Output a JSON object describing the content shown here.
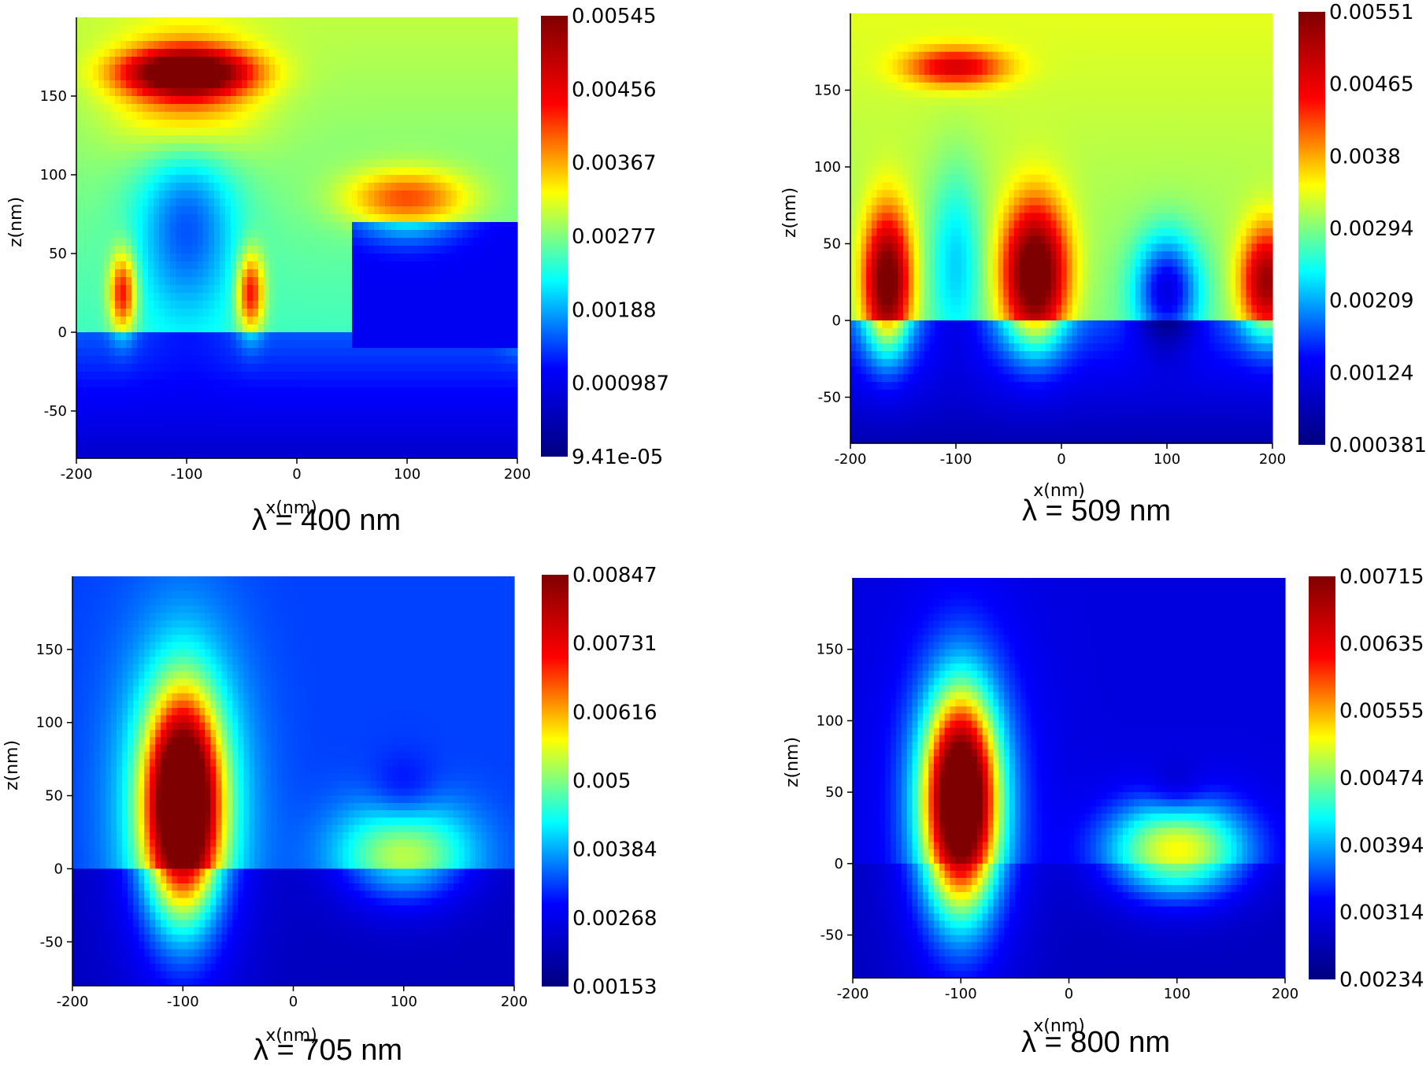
{
  "colormap": {
    "name": "jet",
    "stops": [
      "#00007f",
      "#0000ff",
      "#00ffff",
      "#ffff00",
      "#ff0000",
      "#7f0000"
    ]
  },
  "chart_data": [
    {
      "type": "heatmap",
      "caption": "λ = 400 nm",
      "xlabel": "x(nm)",
      "ylabel": "z(nm)",
      "xlim": [
        -200,
        200
      ],
      "ylim": [
        -80,
        200
      ],
      "x_ticks": [
        "-200",
        "-100",
        "0",
        "100",
        "200"
      ],
      "y_ticks": [
        "-50",
        "0",
        "50",
        "100",
        "150"
      ],
      "colorbar": {
        "min": 9.41e-05,
        "max": 0.00545,
        "tick_labels": [
          "0.00545",
          "0.00456",
          "0.00367",
          "0.00277",
          "0.00188",
          "0.000987",
          "9.41e-05"
        ]
      }
    },
    {
      "type": "heatmap",
      "caption": "λ = 509 nm",
      "xlabel": "x(nm)",
      "ylabel": "z(nm)",
      "xlim": [
        -200,
        200
      ],
      "ylim": [
        -80,
        200
      ],
      "x_ticks": [
        "-200",
        "-100",
        "0",
        "100",
        "200"
      ],
      "y_ticks": [
        "-50",
        "0",
        "50",
        "100",
        "150"
      ],
      "colorbar": {
        "min": 0.000381,
        "max": 0.00551,
        "tick_labels": [
          "0.00551",
          "0.00465",
          "0.0038",
          "0.00294",
          "0.00209",
          "0.00124",
          "0.000381"
        ]
      }
    },
    {
      "type": "heatmap",
      "caption": "λ = 705 nm",
      "xlabel": "x(nm)",
      "ylabel": "z(nm)",
      "xlim": [
        -200,
        200
      ],
      "ylim": [
        -80,
        200
      ],
      "x_ticks": [
        "-200",
        "-100",
        "0",
        "100",
        "200"
      ],
      "y_ticks": [
        "-50",
        "0",
        "50",
        "100",
        "150"
      ],
      "colorbar": {
        "min": 0.00153,
        "max": 0.00847,
        "tick_labels": [
          "0.00847",
          "0.00731",
          "0.00616",
          "0.005",
          "0.00384",
          "0.00268",
          "0.00153"
        ]
      }
    },
    {
      "type": "heatmap",
      "caption": "λ = 800 nm",
      "xlabel": "x(nm)",
      "ylabel": "z(nm)",
      "xlim": [
        -200,
        200
      ],
      "ylim": [
        -80,
        200
      ],
      "x_ticks": [
        "-200",
        "-100",
        "0",
        "100",
        "200"
      ],
      "y_ticks": [
        "-50",
        "0",
        "50",
        "100",
        "150"
      ],
      "colorbar": {
        "min": 0.00234,
        "max": 0.00715,
        "tick_labels": [
          "0.00715",
          "0.00635",
          "0.00555",
          "0.00474",
          "0.00394",
          "0.00314",
          "0.00234"
        ]
      }
    }
  ]
}
